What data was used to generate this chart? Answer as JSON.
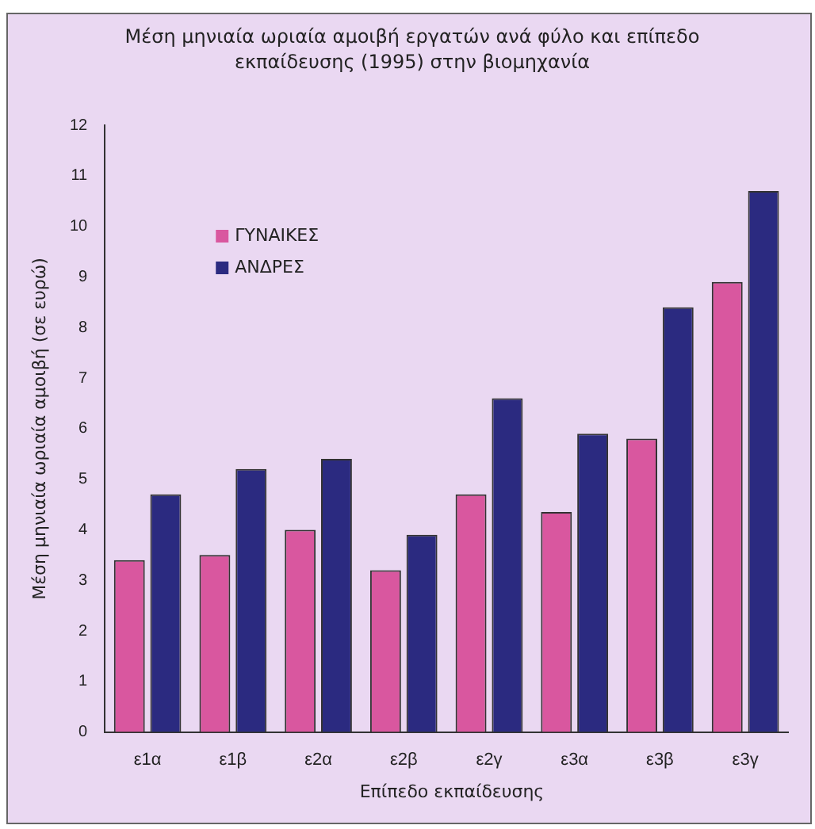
{
  "chart_data": {
    "type": "bar",
    "title": "Μέση μηνιαία ωριαία αμοιβή εργατών ανά φύλο και επίπεδο εκπαίδευσης (1995) στην βιομηχανία",
    "xlabel": "Επίπεδο εκπαίδευσης",
    "ylabel": "Μέση μηνιαία ωριαία αμοιβή (σε ευρώ)",
    "categories": [
      "ε1α",
      "ε1β",
      "ε2α",
      "ε2β",
      "ε2γ",
      "ε3α",
      "ε3β",
      "ε3γ"
    ],
    "series": [
      {
        "name": "ΓΥΝΑΙΚΕΣ",
        "color": "#d9579f",
        "values": [
          3.4,
          3.5,
          4.0,
          3.2,
          4.7,
          4.35,
          5.8,
          8.9
        ]
      },
      {
        "name": "ΑΝΔΡΕΣ",
        "color": "#2b2a80",
        "values": [
          4.7,
          5.2,
          5.4,
          3.9,
          6.6,
          5.9,
          8.4,
          10.7
        ]
      }
    ],
    "ylim": [
      0,
      12
    ],
    "yticks": [
      0,
      1,
      2,
      3,
      4,
      5,
      6,
      7,
      8,
      9,
      10,
      11,
      12
    ],
    "grid": false,
    "legend": "top left"
  }
}
